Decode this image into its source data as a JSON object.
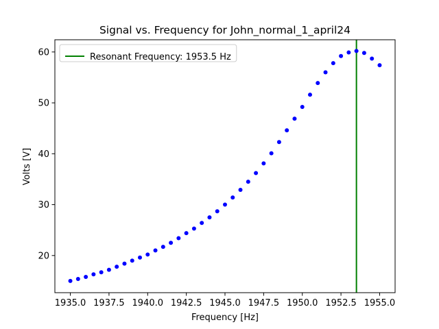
{
  "chart_data": {
    "type": "scatter",
    "title": "Signal vs. Frequency for John_normal_1_april24",
    "xlabel": "Frequency [Hz]",
    "ylabel": "Volts [V]",
    "xlim": [
      1934.0,
      1956.0
    ],
    "ylim": [
      12.7,
      62.4
    ],
    "xticks": [
      1935.0,
      1937.5,
      1940.0,
      1942.5,
      1945.0,
      1947.5,
      1950.0,
      1952.5,
      1955.0
    ],
    "xtick_labels": [
      "1935.0",
      "1937.5",
      "1940.0",
      "1942.5",
      "1945.0",
      "1947.5",
      "1950.0",
      "1952.5",
      "1955.0"
    ],
    "yticks": [
      20,
      30,
      40,
      50,
      60
    ],
    "ytick_labels": [
      "20",
      "30",
      "40",
      "50",
      "60"
    ],
    "grid": false,
    "legend": {
      "placement": "top-left"
    },
    "series": [
      {
        "color": "#0000ff",
        "marker": "dot",
        "x": [
          1935.0,
          1935.5,
          1936.0,
          1936.5,
          1937.0,
          1937.5,
          1938.0,
          1938.5,
          1939.0,
          1939.5,
          1940.0,
          1940.5,
          1941.0,
          1941.5,
          1942.0,
          1942.5,
          1943.0,
          1943.5,
          1944.0,
          1944.5,
          1945.0,
          1945.5,
          1946.0,
          1946.5,
          1947.0,
          1947.5,
          1948.0,
          1948.5,
          1949.0,
          1949.5,
          1950.0,
          1950.5,
          1951.0,
          1951.5,
          1952.0,
          1952.5,
          1953.0,
          1953.5,
          1954.0,
          1954.5,
          1955.0
        ],
        "y": [
          15.0,
          15.4,
          15.8,
          16.3,
          16.7,
          17.2,
          17.8,
          18.4,
          19.0,
          19.6,
          20.2,
          21.0,
          21.7,
          22.5,
          23.4,
          24.4,
          25.3,
          26.4,
          27.5,
          28.7,
          30.0,
          31.4,
          32.9,
          34.5,
          36.2,
          38.1,
          40.1,
          42.3,
          44.6,
          46.9,
          49.2,
          51.6,
          53.9,
          56.0,
          57.8,
          59.2,
          59.9,
          60.2,
          59.8,
          58.7,
          57.4
        ]
      }
    ],
    "vlines": [
      {
        "name": "Resonant Frequency: 1953.5 Hz",
        "x": 1953.5,
        "color": "#008000"
      }
    ]
  }
}
